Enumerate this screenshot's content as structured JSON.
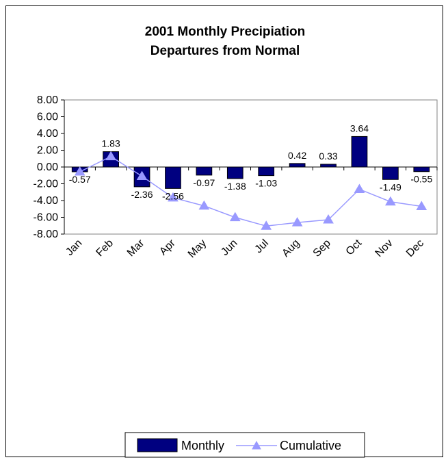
{
  "chart_data": {
    "type": "bar",
    "title": [
      "2001 Monthly Precipiation",
      "Departures from Normal"
    ],
    "xlabel": "",
    "ylabel": "",
    "categories": [
      "Jan",
      "Feb",
      "Mar",
      "Apr",
      "May",
      "Jun",
      "Jul",
      "Aug",
      "Sep",
      "Oct",
      "Nov",
      "Dec"
    ],
    "ylim": [
      -8,
      8
    ],
    "yticks": [
      "8.00",
      "6.00",
      "4.00",
      "2.00",
      "0.00",
      "-2.00",
      "-4.00",
      "-6.00",
      "-8.00"
    ],
    "grid": false,
    "legend_position": "bottom",
    "series": [
      {
        "name": "Monthly",
        "type": "bar",
        "color": "#000080",
        "values": [
          -0.57,
          1.83,
          -2.36,
          -2.56,
          -0.97,
          -1.38,
          -1.03,
          0.42,
          0.33,
          3.64,
          -1.49,
          -0.55
        ],
        "data_labels": [
          "-0.57",
          "1.83",
          "-2.36",
          "-2.56",
          "-0.97",
          "-1.38",
          "-1.03",
          "0.42",
          "0.33",
          "3.64",
          "-1.49",
          "-0.55"
        ]
      },
      {
        "name": "Cumulative",
        "type": "line",
        "marker": "triangle",
        "color": "#9999ff",
        "values": [
          -0.57,
          1.26,
          -1.1,
          -3.66,
          -4.63,
          -6.01,
          -7.04,
          -6.62,
          -6.29,
          -2.65,
          -4.14,
          -4.69
        ]
      }
    ]
  }
}
